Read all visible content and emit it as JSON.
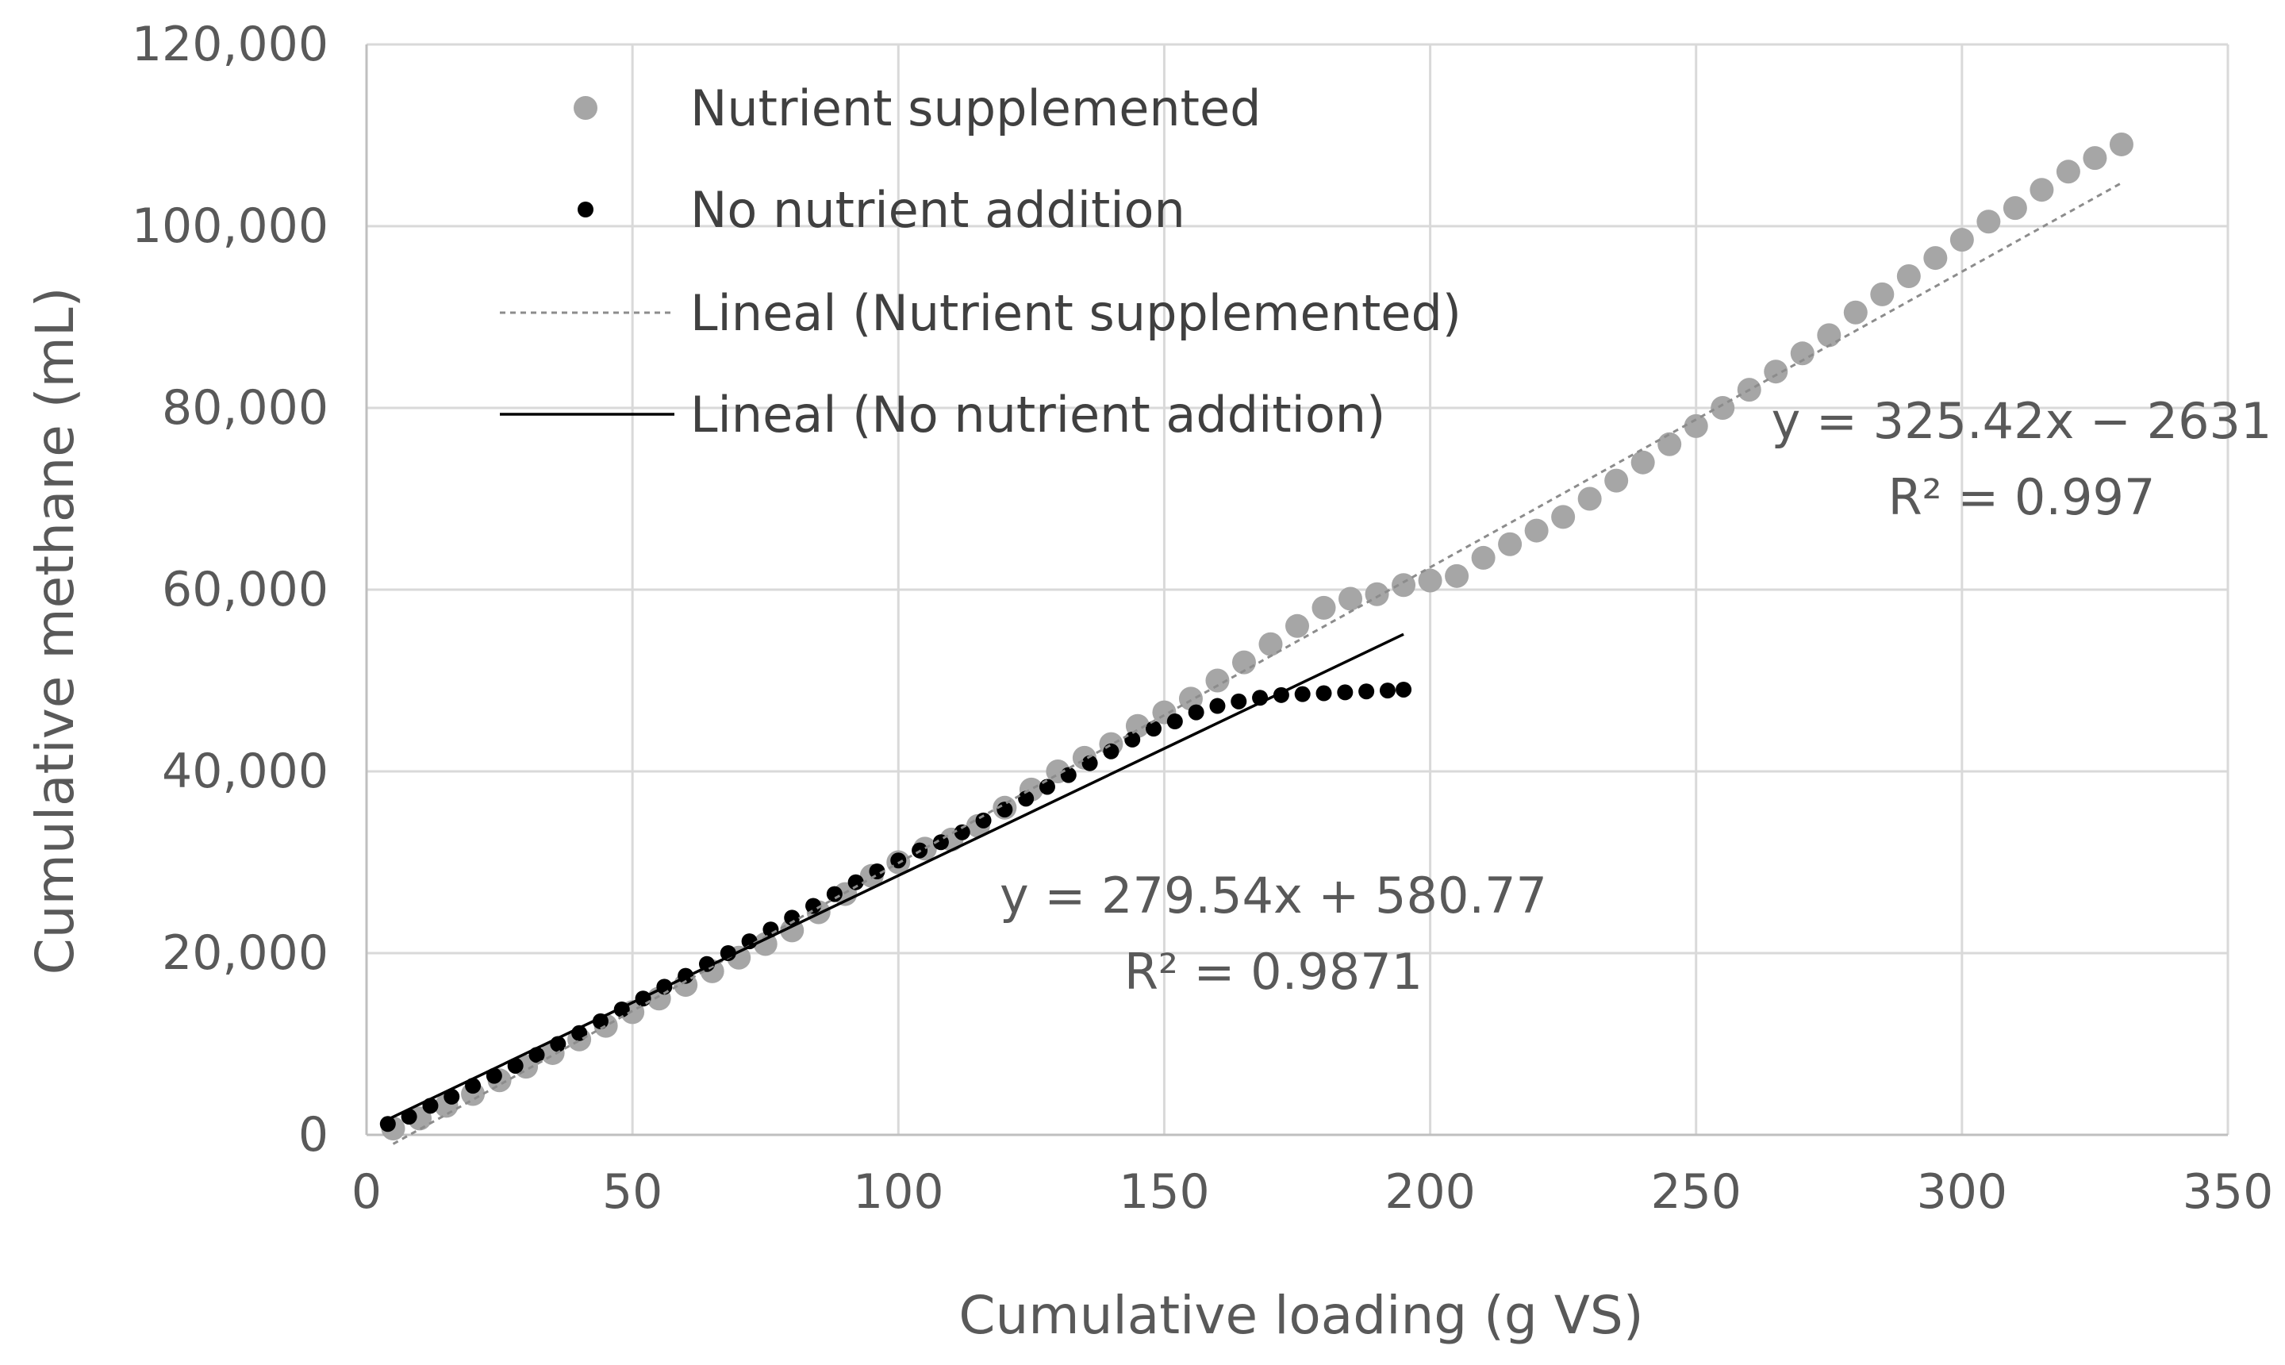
{
  "chart_data": {
    "type": "scatter",
    "title": "",
    "xlabel": "Cumulative loading (g VS)",
    "ylabel": "Cumulative methane (mL)",
    "xlim": [
      0,
      350
    ],
    "ylim": [
      0,
      120000
    ],
    "xticks": [
      0,
      50,
      100,
      150,
      200,
      250,
      300,
      350
    ],
    "yticks": [
      0,
      20000,
      40000,
      60000,
      80000,
      100000,
      120000
    ],
    "xtick_labels": [
      "0",
      "50",
      "100",
      "150",
      "200",
      "250",
      "300",
      "350"
    ],
    "ytick_labels": [
      "0",
      "20,000",
      "40,000",
      "60,000",
      "80,000",
      "100,000",
      "120,000"
    ],
    "grid": true,
    "legend_position": "top-left",
    "legend": [
      "Nutrient supplemented",
      "No nutrient addition",
      "Lineal (Nutrient supplemented)",
      "Lineal (No nutrient addition)"
    ],
    "series": [
      {
        "name": "Nutrient supplemented",
        "color": "#a6a6a6",
        "x": [
          5,
          10,
          15,
          20,
          25,
          30,
          35,
          40,
          45,
          50,
          55,
          60,
          65,
          70,
          75,
          80,
          85,
          90,
          95,
          100,
          105,
          110,
          115,
          120,
          125,
          130,
          135,
          140,
          145,
          150,
          155,
          160,
          165,
          170,
          175,
          180,
          185,
          190,
          195,
          200,
          205,
          210,
          215,
          220,
          225,
          230,
          235,
          240,
          245,
          250,
          255,
          260,
          265,
          270,
          275,
          280,
          285,
          290,
          295,
          300,
          305,
          310,
          315,
          320,
          325,
          330
        ],
        "y": [
          700,
          1800,
          3200,
          4500,
          6000,
          7500,
          9000,
          10500,
          12000,
          13500,
          15000,
          16500,
          18000,
          19500,
          21000,
          22500,
          24500,
          26500,
          28500,
          30000,
          31500,
          32500,
          34000,
          36000,
          38000,
          40000,
          41500,
          43000,
          45000,
          46500,
          48000,
          50000,
          52000,
          54000,
          56000,
          58000,
          59000,
          59500,
          60500,
          61000,
          61500,
          63500,
          65000,
          66500,
          68000,
          70000,
          72000,
          74000,
          76000,
          78000,
          80000,
          82000,
          84000,
          86000,
          88000,
          90500,
          92500,
          94500,
          96500,
          98500,
          100500,
          102000,
          104000,
          106000,
          107500,
          109000
        ]
      },
      {
        "name": "No nutrient addition",
        "color": "#000000",
        "x": [
          4,
          8,
          12,
          16,
          20,
          24,
          28,
          32,
          36,
          40,
          44,
          48,
          52,
          56,
          60,
          64,
          68,
          72,
          76,
          80,
          84,
          88,
          92,
          96,
          100,
          104,
          108,
          112,
          116,
          120,
          124,
          128,
          132,
          136,
          140,
          144,
          148,
          152,
          156,
          160,
          164,
          168,
          172,
          176,
          180,
          184,
          188,
          192,
          195
        ],
        "y": [
          1200,
          2000,
          3200,
          4200,
          5400,
          6500,
          7600,
          8800,
          10000,
          11200,
          12500,
          13800,
          15000,
          16300,
          17500,
          18800,
          20000,
          21300,
          22600,
          23900,
          25200,
          26500,
          27800,
          29000,
          30200,
          31300,
          32200,
          33300,
          34600,
          35800,
          37000,
          38300,
          39600,
          40900,
          42200,
          43500,
          44700,
          45500,
          46500,
          47200,
          47700,
          48100,
          48400,
          48500,
          48600,
          48700,
          48800,
          48900,
          49000
        ]
      }
    ],
    "trendlines": [
      {
        "name": "Lineal (Nutrient supplemented)",
        "slope": 325.42,
        "intercept": -2631,
        "x_range": [
          5,
          330
        ],
        "color": "#8c8c8c",
        "style": "dashed"
      },
      {
        "name": "Lineal (No nutrient addition)",
        "slope": 279.54,
        "intercept": 580.77,
        "x_range": [
          4,
          195
        ],
        "color": "#000000",
        "style": "solid"
      }
    ],
    "annotations": [
      {
        "equation": "y = 325.42x − 2631",
        "r_squared": "R² = 0.997",
        "anchor": [
          310,
          78000
        ]
      },
      {
        "equation": "y = 279.54x + 580.77",
        "r_squared": "R² = 0.9871",
        "anchor": [
          170,
          26000
        ]
      }
    ]
  }
}
